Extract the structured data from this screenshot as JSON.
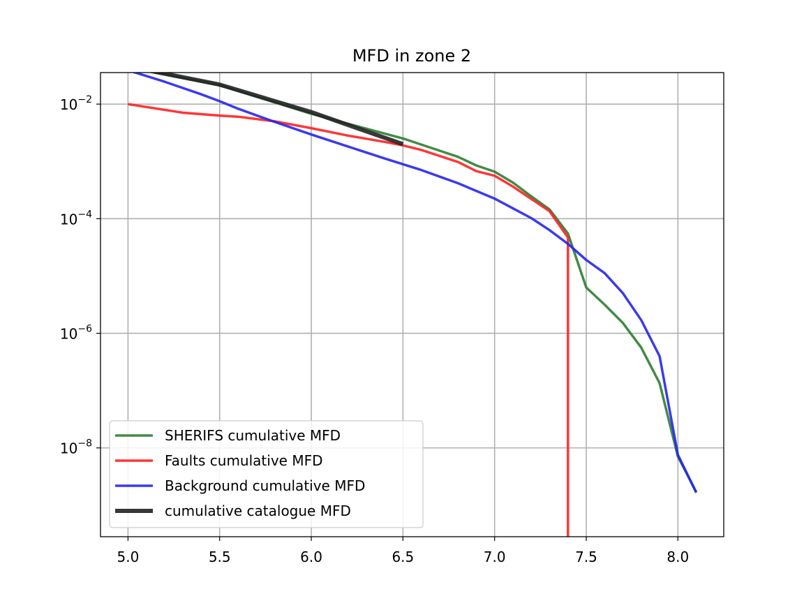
{
  "chart_data": {
    "type": "line",
    "title": "MFD in zone 2",
    "xlabel": "",
    "ylabel": "",
    "xlim": [
      4.85,
      8.25
    ],
    "ylim_log10": [
      -9.55,
      -1.45
    ],
    "yscale": "log",
    "grid": true,
    "legend_position": "lower-left",
    "x_ticks": [
      {
        "value": 5.0,
        "label": "5.0"
      },
      {
        "value": 5.5,
        "label": "5.5"
      },
      {
        "value": 6.0,
        "label": "6.0"
      },
      {
        "value": 6.5,
        "label": "6.5"
      },
      {
        "value": 7.0,
        "label": "7.0"
      },
      {
        "value": 7.5,
        "label": "7.5"
      },
      {
        "value": 8.0,
        "label": "8.0"
      }
    ],
    "y_ticks": [
      {
        "exp": -2,
        "base": "10",
        "sup": "−2"
      },
      {
        "exp": -4,
        "base": "10",
        "sup": "−4"
      },
      {
        "exp": -6,
        "base": "10",
        "sup": "−6"
      },
      {
        "exp": -8,
        "base": "10",
        "sup": "−8"
      }
    ],
    "series": [
      {
        "name": "SHERIFS cumulative MFD",
        "color": "#2e7d32",
        "width": 3.5,
        "x": [
          5.0,
          5.5,
          6.0,
          6.5,
          6.8,
          6.9,
          7.0,
          7.1,
          7.2,
          7.3,
          7.4,
          7.5,
          7.6,
          7.7,
          7.8,
          7.9,
          8.0,
          8.1
        ],
        "log10_y": [
          -1.36,
          -1.67,
          -2.17,
          -2.6,
          -2.92,
          -3.07,
          -3.18,
          -3.37,
          -3.61,
          -3.84,
          -4.26,
          -5.2,
          -5.5,
          -5.82,
          -6.25,
          -6.87,
          -8.15,
          -8.77
        ]
      },
      {
        "name": "Faults cumulative MFD",
        "color": "#ff2020",
        "width": 3.5,
        "x": [
          5.0,
          5.3,
          5.5,
          5.6,
          5.8,
          6.0,
          6.2,
          6.4,
          6.5,
          6.6,
          6.8,
          6.9,
          7.0,
          7.1,
          7.3,
          7.4,
          7.4
        ],
        "log10_y": [
          -2.0,
          -2.15,
          -2.2,
          -2.22,
          -2.3,
          -2.42,
          -2.55,
          -2.66,
          -2.72,
          -2.8,
          -3.01,
          -3.17,
          -3.25,
          -3.44,
          -3.87,
          -4.33,
          -9.55
        ]
      },
      {
        "name": "Background cumulative MFD",
        "color": "#2525ee",
        "width": 3.5,
        "x": [
          5.0,
          5.2,
          5.4,
          5.5,
          5.6,
          5.8,
          6.0,
          6.2,
          6.4,
          6.6,
          6.8,
          7.0,
          7.1,
          7.2,
          7.3,
          7.4,
          7.5,
          7.6,
          7.7,
          7.8,
          7.9,
          8.0,
          8.1
        ],
        "log10_y": [
          -1.41,
          -1.61,
          -1.83,
          -1.95,
          -2.08,
          -2.31,
          -2.53,
          -2.74,
          -2.95,
          -3.15,
          -3.38,
          -3.65,
          -3.82,
          -3.99,
          -4.2,
          -4.44,
          -4.72,
          -4.95,
          -5.3,
          -5.77,
          -6.4,
          -8.12,
          -8.78
        ]
      },
      {
        "name": "cumulative catalogue MFD",
        "color": "#222222",
        "width": 6,
        "x": [
          5.0,
          5.5,
          6.0,
          6.5
        ],
        "log10_y": [
          -1.34,
          -1.66,
          -2.14,
          -2.7
        ]
      }
    ]
  }
}
